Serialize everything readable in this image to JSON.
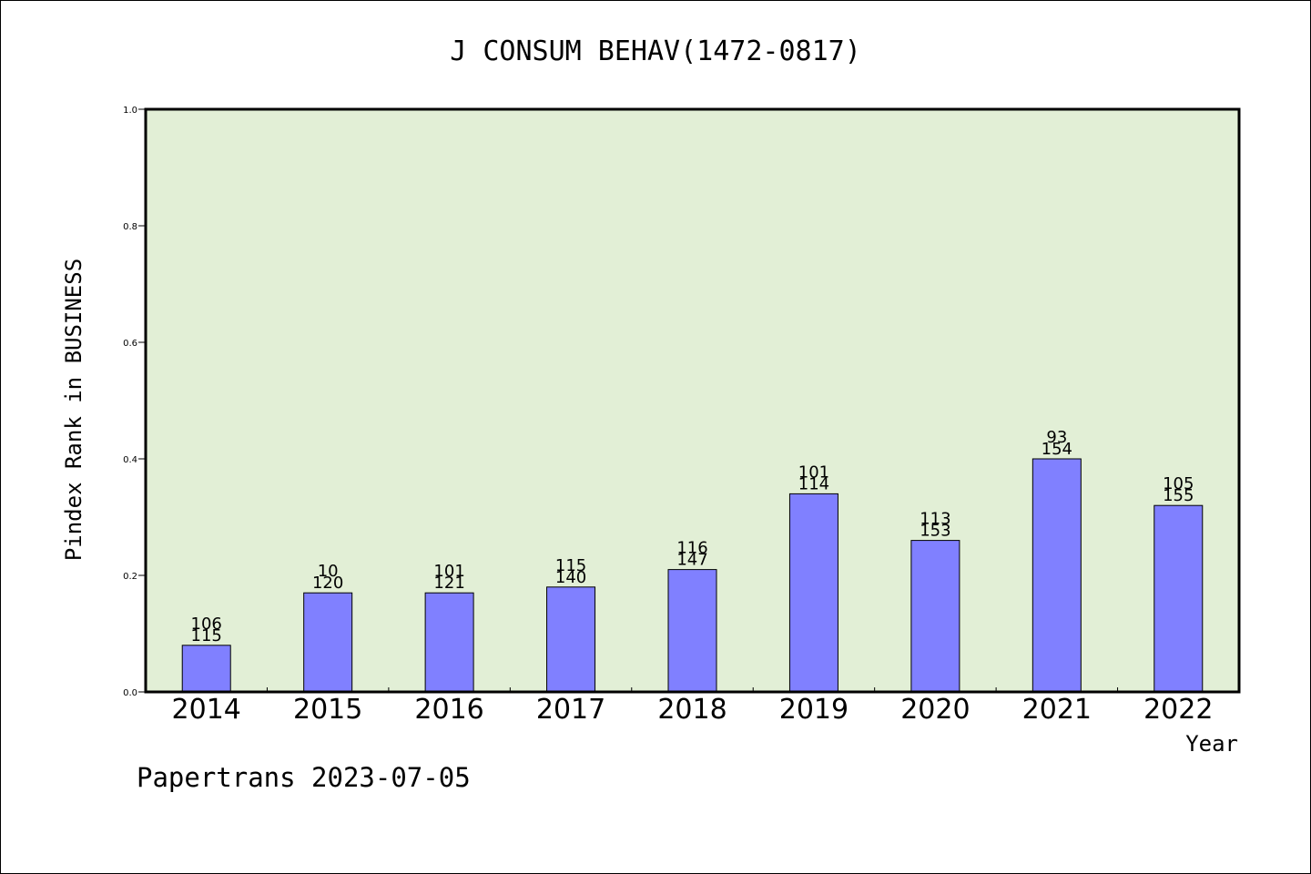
{
  "chart_data": {
    "type": "bar",
    "title": "J CONSUM BEHAV(1472-0817)",
    "xlabel": "Year",
    "ylabel": "Pindex Rank in BUSINESS",
    "ylim": [
      0,
      1.0
    ],
    "yticks": [
      "0.0",
      "0.2",
      "0.4",
      "0.6",
      "0.8",
      "1.0"
    ],
    "categories": [
      "2014",
      "2015",
      "2016",
      "2017",
      "2018",
      "2019",
      "2020",
      "2021",
      "2022"
    ],
    "values": [
      0.08,
      0.17,
      0.17,
      0.18,
      0.21,
      0.34,
      0.26,
      0.4,
      0.32
    ],
    "labels_top": [
      "106",
      "10",
      "101",
      "115",
      "116",
      "101",
      "113",
      "93",
      "105"
    ],
    "labels_bottom": [
      "115",
      "120",
      "121",
      "140",
      "147",
      "114",
      "153",
      "154",
      "155"
    ],
    "grid": false,
    "colors": {
      "plot_bg": "#e2efd6",
      "bar": "#8080ff",
      "bar_edge": "#000000"
    }
  },
  "footer": "Papertrans 2023-07-05"
}
